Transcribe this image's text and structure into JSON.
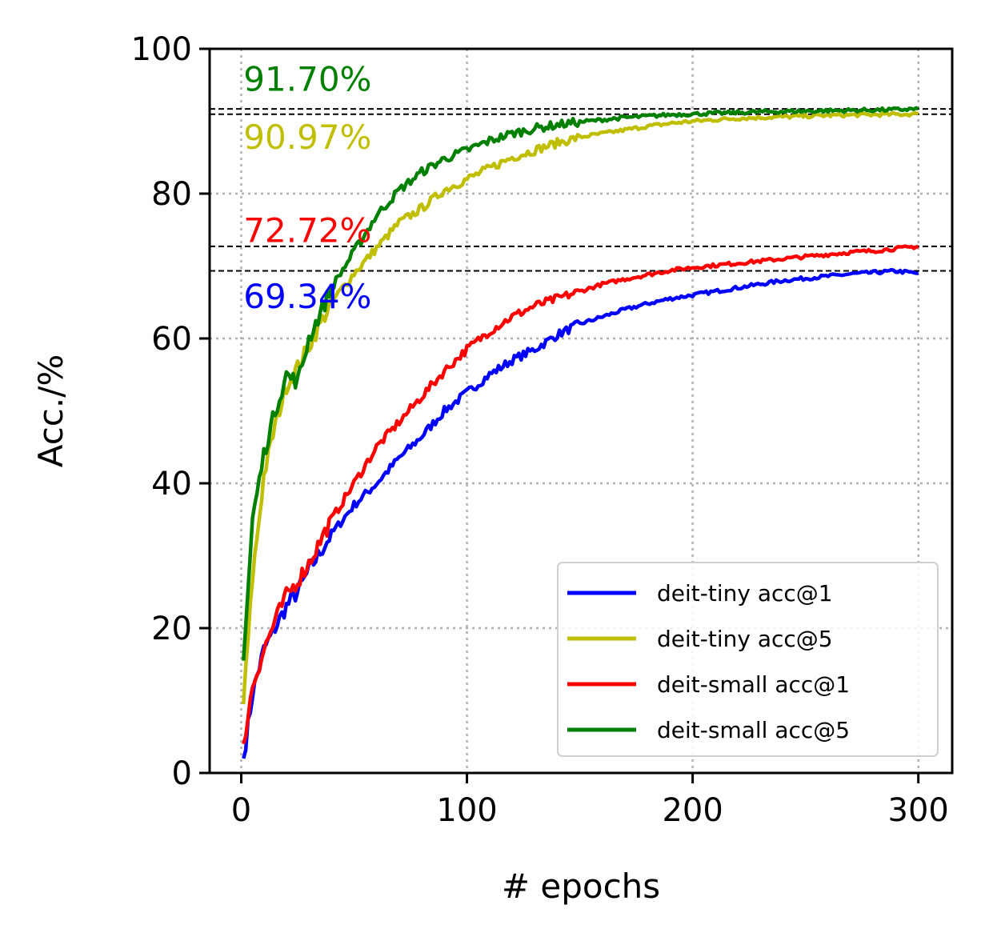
{
  "chart_data": {
    "type": "line",
    "title": "",
    "xlabel": "# epochs",
    "ylabel": "Acc./%",
    "xlim": [
      -14,
      315
    ],
    "ylim": [
      0,
      100
    ],
    "xticks": [
      0,
      100,
      200,
      300
    ],
    "yticks": [
      0,
      20,
      40,
      60,
      80,
      100
    ],
    "grid": true,
    "legend_position": "lower-right",
    "series": [
      {
        "name": "deit-tiny acc@1",
        "color": "#0000ff",
        "x": [
          1,
          5,
          10,
          15,
          20,
          25,
          30,
          40,
          50,
          60,
          70,
          80,
          90,
          100,
          110,
          120,
          130,
          140,
          150,
          160,
          170,
          180,
          190,
          200,
          210,
          220,
          230,
          240,
          250,
          260,
          270,
          280,
          290,
          300
        ],
        "y": [
          2,
          11,
          17,
          20,
          23,
          25,
          28,
          33,
          37,
          40,
          43.5,
          46.5,
          50,
          52.5,
          55,
          57,
          58.5,
          60.5,
          62,
          63,
          64,
          64.8,
          65.5,
          66,
          66.5,
          67,
          67.5,
          68,
          68.3,
          68.6,
          68.9,
          69.1,
          69.3,
          69.0
        ]
      },
      {
        "name": "deit-tiny acc@5",
        "color": "#bfbf00",
        "x": [
          1,
          5,
          10,
          15,
          20,
          25,
          30,
          40,
          50,
          60,
          70,
          80,
          90,
          100,
          110,
          120,
          130,
          140,
          150,
          160,
          170,
          180,
          190,
          200,
          210,
          220,
          230,
          240,
          250,
          260,
          270,
          280,
          290,
          300
        ],
        "y": [
          9.5,
          27,
          41,
          48,
          53.5,
          56,
          59,
          65,
          69,
          72.5,
          76,
          78,
          80.5,
          82,
          83.5,
          85,
          86,
          87,
          87.8,
          88.3,
          88.8,
          89.3,
          89.7,
          90,
          90.2,
          90.4,
          90.5,
          90.6,
          90.7,
          90.8,
          90.85,
          90.9,
          90.95,
          90.97
        ]
      },
      {
        "name": "deit-small acc@1",
        "color": "#ff0000",
        "x": [
          1,
          5,
          10,
          15,
          20,
          25,
          30,
          40,
          50,
          60,
          70,
          80,
          90,
          100,
          110,
          120,
          130,
          140,
          150,
          160,
          170,
          180,
          190,
          200,
          210,
          220,
          230,
          240,
          250,
          260,
          270,
          280,
          290,
          300
        ],
        "y": [
          4,
          12,
          17,
          21,
          24.5,
          26.5,
          29,
          35,
          40,
          45,
          48.5,
          52,
          55.5,
          58.5,
          61,
          63,
          64.5,
          65.5,
          66.5,
          67.5,
          68.2,
          68.8,
          69.4,
          69.8,
          70.1,
          70.4,
          70.7,
          71,
          71.3,
          71.6,
          71.9,
          72.1,
          72.4,
          72.72
        ]
      },
      {
        "name": "deit-small acc@5",
        "color": "#008000",
        "x": [
          1,
          5,
          10,
          15,
          20,
          25,
          30,
          40,
          50,
          60,
          70,
          80,
          90,
          100,
          110,
          120,
          130,
          140,
          150,
          160,
          170,
          180,
          190,
          200,
          210,
          220,
          230,
          240,
          250,
          260,
          270,
          280,
          290,
          300
        ],
        "y": [
          15.5,
          35,
          44,
          50,
          55,
          54,
          60,
          67,
          72,
          77,
          80.5,
          83,
          84.8,
          86,
          87.3,
          88.3,
          89,
          89.5,
          89.9,
          90.2,
          90.5,
          90.7,
          90.9,
          91.0,
          91.1,
          91.2,
          91.3,
          91.35,
          91.4,
          91.45,
          91.5,
          91.55,
          91.6,
          91.7
        ]
      }
    ],
    "reference_lines": [
      91.7,
      90.97,
      72.72,
      69.34
    ],
    "annotations": [
      {
        "text": "91.70%",
        "x": 1,
        "y": 94.2,
        "color": "#008000"
      },
      {
        "text": "90.97%",
        "x": 1,
        "y": 86.2,
        "color": "#bfbf00"
      },
      {
        "text": "72.72%",
        "x": 1,
        "y": 73.3,
        "color": "#ff0000"
      },
      {
        "text": "69.34%",
        "x": 1,
        "y": 64.2,
        "color": "#0000ff"
      }
    ]
  }
}
